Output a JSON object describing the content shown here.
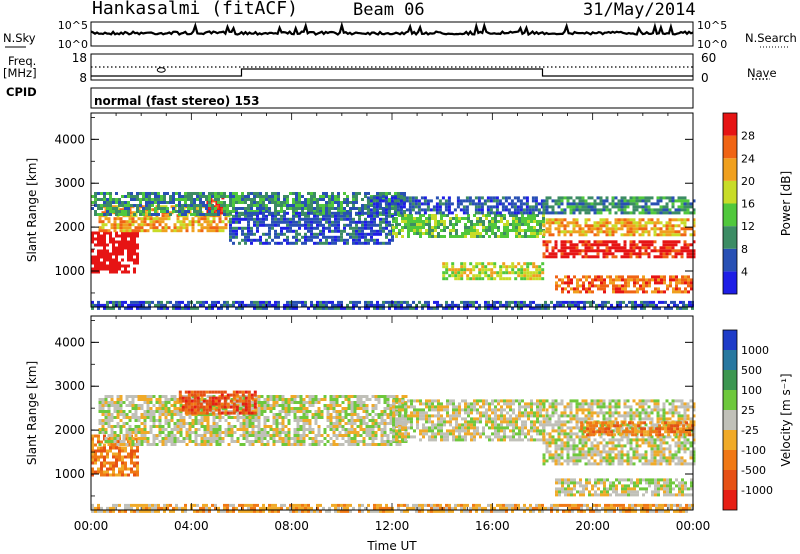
{
  "header": {
    "station": "Hankasalmi (fitACF)",
    "beam": "Beam 06",
    "date": "31/May/2014"
  },
  "aux": {
    "nsky_label": "N.Sky",
    "nsearch_label": "N.Search",
    "freq_label_1": "Freq.",
    "freq_label_2": "[MHz]",
    "nave_label": "Nave",
    "cpid_label": "CPID",
    "noise_ticks_left": [
      "10^5",
      "10^0"
    ],
    "noise_ticks_right": [
      "10^5",
      "10^0"
    ],
    "freq_ticks": [
      "18",
      "8"
    ],
    "nave_ticks": [
      "60",
      "0"
    ],
    "program_name": "normal (fast stereo) 153"
  },
  "chart_data": [
    {
      "type": "heatmap",
      "panel": "power",
      "xlabel": "Time UT",
      "ylabel": "Slant Range [km]",
      "x_ticks": [
        "00:00",
        "04:00",
        "08:00",
        "12:00",
        "16:00",
        "20:00",
        "00:00"
      ],
      "y_ticks": [
        "1000",
        "2000",
        "3000",
        "4000"
      ],
      "ylim": [
        180,
        4600
      ],
      "colorbar_label": "Power [dB]",
      "colorbar_ticks": [
        "4",
        "8",
        "12",
        "16",
        "20",
        "24",
        "28"
      ],
      "colorbar_colors": [
        "#1e1ee6",
        "#2850b4",
        "#3c8c64",
        "#50c83c",
        "#c8dc28",
        "#f0a01e",
        "#f06414",
        "#e61414"
      ],
      "bands": [
        {
          "t0": 0.0,
          "t1": 1.8,
          "r0": 1000,
          "r1": 1900,
          "level": 8
        },
        {
          "t0": 0.3,
          "t1": 5.5,
          "r0": 1900,
          "r1": 2500,
          "level": 5
        },
        {
          "t0": 4.6,
          "t1": 5.3,
          "r0": 2350,
          "r1": 2700,
          "level": 7
        },
        {
          "t0": 0.0,
          "t1": 12.5,
          "r0": 2300,
          "r1": 2800,
          "level": 2
        },
        {
          "t0": 5.5,
          "t1": 12.0,
          "r0": 1600,
          "r1": 2350,
          "level": 1
        },
        {
          "t0": 12.0,
          "t1": 18.0,
          "r0": 1800,
          "r1": 2300,
          "level": 3
        },
        {
          "t0": 11.0,
          "t1": 18.0,
          "r0": 2300,
          "r1": 2700,
          "level": 1
        },
        {
          "t0": 14.0,
          "t1": 18.0,
          "r0": 800,
          "r1": 1200,
          "level": 4
        },
        {
          "t0": 18.0,
          "t1": 24.0,
          "r0": 1300,
          "r1": 1700,
          "level": 7
        },
        {
          "t0": 18.0,
          "t1": 24.0,
          "r0": 1800,
          "r1": 2200,
          "level": 5
        },
        {
          "t0": 18.0,
          "t1": 24.0,
          "r0": 2300,
          "r1": 2700,
          "level": 2
        },
        {
          "t0": 18.5,
          "t1": 24.0,
          "r0": 500,
          "r1": 900,
          "level": 6
        },
        {
          "t0": 0.0,
          "t1": 24.0,
          "r0": 180,
          "r1": 320,
          "level": 1
        }
      ]
    },
    {
      "type": "heatmap",
      "panel": "velocity",
      "xlabel": "Time UT",
      "ylabel": "Slant Range [km]",
      "x_ticks": [
        "00:00",
        "04:00",
        "08:00",
        "12:00",
        "16:00",
        "20:00",
        "00:00"
      ],
      "y_ticks": [
        "1000",
        "2000",
        "3000",
        "4000"
      ],
      "ylim": [
        180,
        4600
      ],
      "colorbar_label": "Velocity [m s⁻¹]",
      "colorbar_ticks": [
        "1000",
        "500",
        "100",
        "25",
        "-25",
        "-100",
        "-500",
        "-1000"
      ],
      "colorbar_colors": [
        "#1e3cc8",
        "#2878a0",
        "#3c9650",
        "#6ec83c",
        "#c0c0b8",
        "#f0aa28",
        "#f07814",
        "#e65014",
        "#e61e14"
      ],
      "bands": [
        {
          "t0": 0.0,
          "t1": 1.8,
          "r0": 1000,
          "r1": 1900,
          "level": 6
        },
        {
          "t0": 0.3,
          "t1": 12.5,
          "r0": 1700,
          "r1": 2800,
          "level": 4
        },
        {
          "t0": 3.5,
          "t1": 6.5,
          "r0": 2400,
          "r1": 2900,
          "level": 7
        },
        {
          "t0": 12.0,
          "t1": 18.0,
          "r0": 1800,
          "r1": 2700,
          "level": 4
        },
        {
          "t0": 18.0,
          "t1": 24.0,
          "r0": 1200,
          "r1": 2700,
          "level": 4
        },
        {
          "t0": 19.5,
          "t1": 24.0,
          "r0": 1900,
          "r1": 2200,
          "level": 6
        },
        {
          "t0": 18.5,
          "t1": 24.0,
          "r0": 500,
          "r1": 900,
          "level": 4
        },
        {
          "t0": 0.0,
          "t1": 24.0,
          "r0": 180,
          "r1": 320,
          "level": 5
        }
      ]
    }
  ]
}
